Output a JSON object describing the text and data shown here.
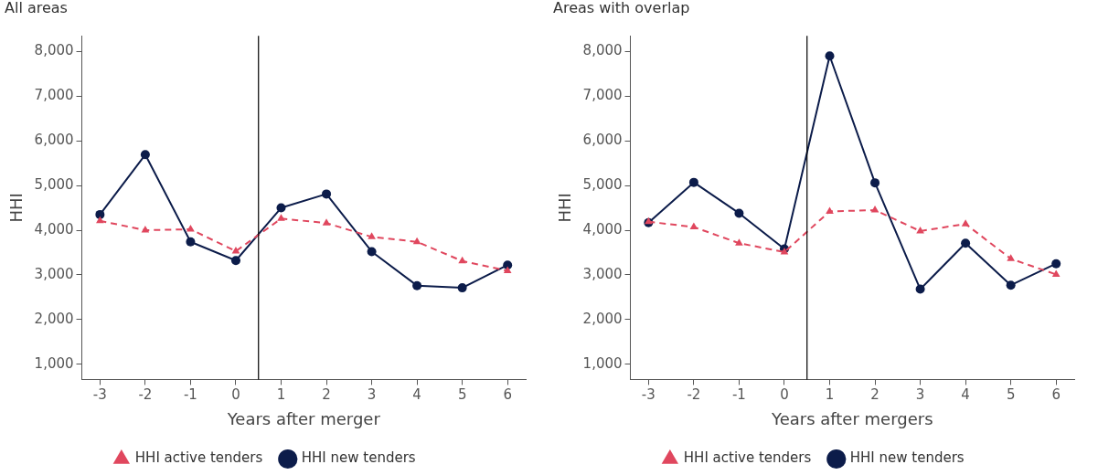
{
  "chart_data": [
    {
      "type": "line",
      "title": "All areas",
      "xlabel": "Years after merger",
      "ylabel": "HHI",
      "x": [
        -3,
        -2,
        -1,
        0,
        1,
        2,
        3,
        4,
        5,
        6
      ],
      "series": [
        {
          "name": "HHI new tenders",
          "color": "#0c1c4a",
          "marker": "circle",
          "line_style": "solid",
          "values": [
            4350,
            5690,
            3740,
            3320,
            4500,
            4810,
            3520,
            2760,
            2710,
            3220
          ]
        },
        {
          "name": "HHI active tenders",
          "color": "#e0475e",
          "marker": "triangle",
          "line_style": "dashed",
          "values": [
            4210,
            4000,
            4020,
            3530,
            4260,
            4160,
            3850,
            3740,
            3310,
            3090
          ]
        }
      ],
      "xlim": [
        -3.4,
        6.4
      ],
      "xticks": [
        -3,
        -2,
        -1,
        0,
        1,
        2,
        3,
        4,
        5,
        6
      ],
      "ylim": [
        660,
        8350
      ],
      "yticks": [
        {
          "value": 1000,
          "label": "1,000"
        },
        {
          "value": 2000,
          "label": "2,000"
        },
        {
          "value": 3000,
          "label": "3,000"
        },
        {
          "value": 4000,
          "label": "4,000"
        },
        {
          "value": 5000,
          "label": "5,000"
        },
        {
          "value": 6000,
          "label": "6,000"
        },
        {
          "value": 7000,
          "label": "7,000"
        },
        {
          "value": 8000,
          "label": "8,000"
        }
      ],
      "ref_lines": [
        {
          "axis": "x",
          "value": 0.5,
          "color": "#000000"
        }
      ],
      "legend": "bottom",
      "grid": false
    },
    {
      "type": "line",
      "title": "Areas with overlap",
      "xlabel": "Years after mergers",
      "ylabel": "HHI",
      "x": [
        -3,
        -2,
        -1,
        0,
        1,
        2,
        3,
        4,
        5,
        6
      ],
      "series": [
        {
          "name": "HHI new tenders",
          "color": "#0c1c4a",
          "marker": "circle",
          "line_style": "solid",
          "values": [
            4170,
            5070,
            4380,
            3580,
            7900,
            5060,
            2680,
            3710,
            2770,
            3250
          ]
        },
        {
          "name": "HHI active tenders",
          "color": "#e0475e",
          "marker": "triangle",
          "line_style": "dashed",
          "values": [
            4190,
            4070,
            3710,
            3510,
            4420,
            4450,
            3980,
            4140,
            3360,
            3010
          ]
        }
      ],
      "xlim": [
        -3.4,
        6.4
      ],
      "xticks": [
        -3,
        -2,
        -1,
        0,
        1,
        2,
        3,
        4,
        5,
        6
      ],
      "ylim": [
        660,
        8350
      ],
      "yticks": [
        {
          "value": 1000,
          "label": "1,000"
        },
        {
          "value": 2000,
          "label": "2,000"
        },
        {
          "value": 3000,
          "label": "3,000"
        },
        {
          "value": 4000,
          "label": "4,000"
        },
        {
          "value": 5000,
          "label": "5,000"
        },
        {
          "value": 6000,
          "label": "6,000"
        },
        {
          "value": 7000,
          "label": "7,000"
        },
        {
          "value": 8000,
          "label": "8,000"
        }
      ],
      "ref_lines": [
        {
          "axis": "x",
          "value": 0.5,
          "color": "#000000"
        }
      ],
      "legend": "bottom",
      "grid": false
    }
  ]
}
